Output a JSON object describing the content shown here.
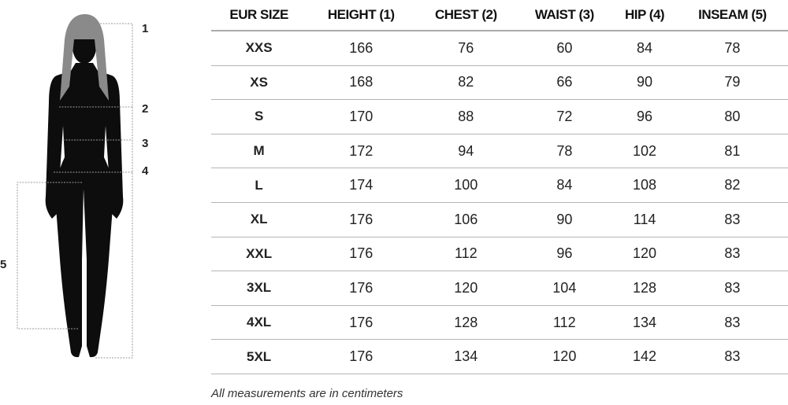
{
  "figure": {
    "labels": [
      "1",
      "2",
      "3",
      "4",
      "5"
    ],
    "hair_color": "#8a8a8a",
    "body_color": "#0d0d0d"
  },
  "table": {
    "headers": [
      "EUR SIZE",
      "HEIGHT (1)",
      "CHEST (2)",
      "WAIST (3)",
      "HIP (4)",
      "INSEAM (5)"
    ],
    "rows": [
      [
        "XXS",
        "166",
        "76",
        "60",
        "84",
        "78"
      ],
      [
        "XS",
        "168",
        "82",
        "66",
        "90",
        "79"
      ],
      [
        "S",
        "170",
        "88",
        "72",
        "96",
        "80"
      ],
      [
        "M",
        "172",
        "94",
        "78",
        "102",
        "81"
      ],
      [
        "L",
        "174",
        "100",
        "84",
        "108",
        "82"
      ],
      [
        "XL",
        "176",
        "106",
        "90",
        "114",
        "83"
      ],
      [
        "XXL",
        "176",
        "112",
        "96",
        "120",
        "83"
      ],
      [
        "3XL",
        "176",
        "120",
        "104",
        "128",
        "83"
      ],
      [
        "4XL",
        "176",
        "128",
        "112",
        "134",
        "83"
      ],
      [
        "5XL",
        "176",
        "134",
        "120",
        "142",
        "83"
      ]
    ]
  },
  "note": "All measurements are in centimeters"
}
